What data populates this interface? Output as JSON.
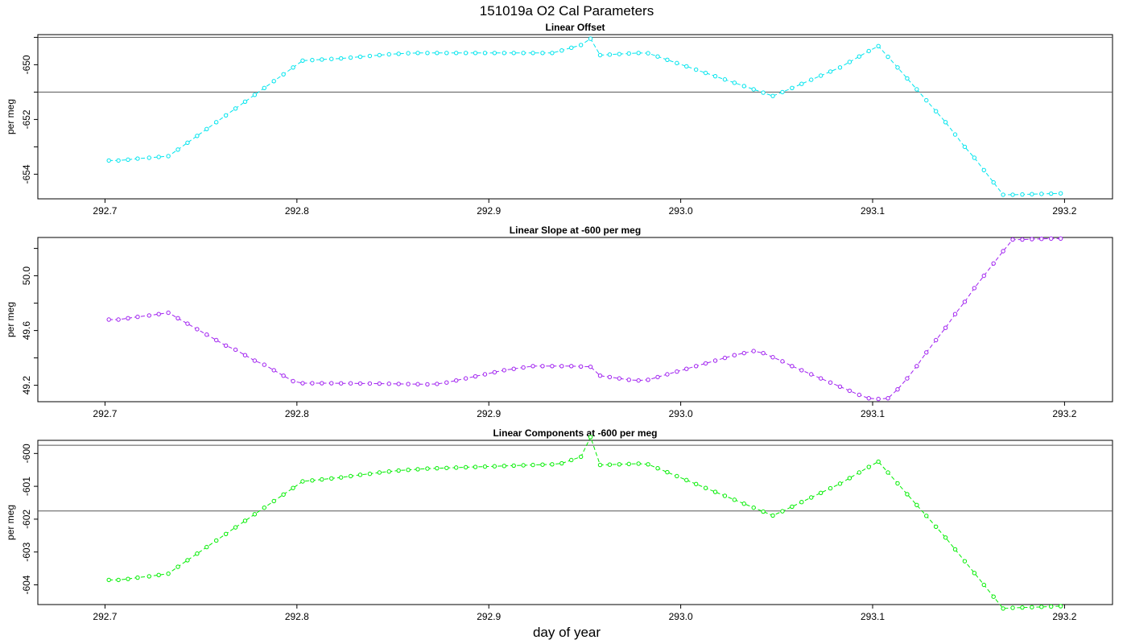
{
  "figure": {
    "title": "151019a   O2 Cal Parameters",
    "xlabel": "day of year"
  },
  "chart_data": [
    {
      "type": "line",
      "title": "Linear Offset",
      "ylabel": "per meg",
      "color": "#00e5ee",
      "xlim": [
        292.665,
        293.225
      ],
      "ylim": [
        -654.9,
        -648.9
      ],
      "xticks": [
        "292.7",
        "292.8",
        "292.9",
        "293.0",
        "293.1",
        "293.2"
      ],
      "yticks": [
        "-650",
        "-652",
        "-654"
      ],
      "yticks_minor": [
        -649,
        -651,
        -653
      ],
      "hlines": [
        -649.0,
        -651.0
      ],
      "x": [
        292.702,
        292.707,
        292.712,
        292.717,
        292.723,
        292.728,
        292.733,
        292.738,
        292.743,
        292.748,
        292.753,
        292.758,
        292.763,
        292.768,
        292.773,
        292.778,
        292.783,
        292.788,
        292.793,
        292.798,
        292.803,
        292.808,
        292.813,
        292.818,
        292.823,
        292.828,
        292.833,
        292.838,
        292.843,
        292.848,
        292.853,
        292.858,
        292.863,
        292.868,
        292.873,
        292.878,
        292.883,
        292.888,
        292.893,
        292.898,
        292.903,
        292.908,
        292.913,
        292.918,
        292.923,
        292.928,
        292.933,
        292.938,
        292.943,
        292.948,
        292.953,
        292.958,
        292.963,
        292.968,
        292.973,
        292.978,
        292.983,
        292.988,
        292.993,
        292.998,
        293.003,
        293.008,
        293.013,
        293.018,
        293.023,
        293.028,
        293.033,
        293.038,
        293.043,
        293.048,
        293.053,
        293.058,
        293.063,
        293.068,
        293.073,
        293.078,
        293.083,
        293.088,
        293.093,
        293.098,
        293.103,
        293.108,
        293.113,
        293.118,
        293.123,
        293.128,
        293.133,
        293.138,
        293.143,
        293.148,
        293.153,
        293.158,
        293.163,
        293.168,
        293.173,
        293.178,
        293.183,
        293.188,
        293.193,
        293.198
      ],
      "values": [
        -653.5,
        -653.5,
        -653.47,
        -653.43,
        -653.4,
        -653.37,
        -653.34,
        -653.1,
        -652.85,
        -652.6,
        -652.35,
        -652.1,
        -651.85,
        -651.6,
        -651.35,
        -651.1,
        -650.85,
        -650.6,
        -650.35,
        -650.1,
        -649.85,
        -649.83,
        -649.81,
        -649.79,
        -649.77,
        -649.74,
        -649.71,
        -649.68,
        -649.65,
        -649.62,
        -649.6,
        -649.58,
        -649.57,
        -649.57,
        -649.57,
        -649.57,
        -649.57,
        -649.57,
        -649.57,
        -649.57,
        -649.57,
        -649.57,
        -649.57,
        -649.57,
        -649.57,
        -649.57,
        -649.57,
        -649.48,
        -649.38,
        -649.28,
        -649.05,
        -649.65,
        -649.63,
        -649.61,
        -649.59,
        -649.57,
        -649.58,
        -649.7,
        -649.82,
        -649.94,
        -650.06,
        -650.18,
        -650.3,
        -650.42,
        -650.54,
        -650.66,
        -650.78,
        -650.9,
        -651.02,
        -651.14,
        -651.0,
        -650.85,
        -650.7,
        -650.55,
        -650.4,
        -650.25,
        -650.1,
        -649.9,
        -649.7,
        -649.5,
        -649.32,
        -649.71,
        -650.1,
        -650.5,
        -650.9,
        -651.3,
        -651.7,
        -652.1,
        -652.55,
        -653.0,
        -653.4,
        -653.85,
        -654.3,
        -654.75,
        -654.75,
        -654.74,
        -654.73,
        -654.72,
        -654.71,
        -654.7
      ]
    },
    {
      "type": "line",
      "title": "Linear Slope at -600 per meg",
      "ylabel": "per meg",
      "color": "#a020f0",
      "xlim": [
        292.665,
        293.225
      ],
      "ylim": [
        49.08,
        50.28
      ],
      "xticks": [
        "292.7",
        "292.8",
        "292.9",
        "293.0",
        "293.1",
        "293.2"
      ],
      "yticks": [
        "50.0",
        "49.6",
        "49.2"
      ],
      "yticks_minor": [
        50.2,
        49.8,
        49.4
      ],
      "hlines": [],
      "x": [
        292.702,
        292.707,
        292.712,
        292.717,
        292.723,
        292.728,
        292.733,
        292.738,
        292.743,
        292.748,
        292.753,
        292.758,
        292.763,
        292.768,
        292.773,
        292.778,
        292.783,
        292.788,
        292.793,
        292.798,
        292.803,
        292.808,
        292.813,
        292.818,
        292.823,
        292.828,
        292.833,
        292.838,
        292.843,
        292.848,
        292.853,
        292.858,
        292.863,
        292.868,
        292.873,
        292.878,
        292.883,
        292.888,
        292.893,
        292.898,
        292.903,
        292.908,
        292.913,
        292.918,
        292.923,
        292.928,
        292.933,
        292.938,
        292.943,
        292.948,
        292.953,
        292.958,
        292.963,
        292.968,
        292.973,
        292.978,
        292.983,
        292.988,
        292.993,
        292.998,
        293.003,
        293.008,
        293.013,
        293.018,
        293.023,
        293.028,
        293.033,
        293.038,
        293.043,
        293.048,
        293.053,
        293.058,
        293.063,
        293.068,
        293.073,
        293.078,
        293.083,
        293.088,
        293.093,
        293.098,
        293.103,
        293.108,
        293.113,
        293.118,
        293.123,
        293.128,
        293.133,
        293.138,
        293.143,
        293.148,
        293.153,
        293.158,
        293.163,
        293.168,
        293.173,
        293.178,
        293.183,
        293.188,
        293.193,
        293.198
      ],
      "values": [
        49.68,
        49.68,
        49.69,
        49.7,
        49.71,
        49.72,
        49.73,
        49.69,
        49.65,
        49.61,
        49.57,
        49.53,
        49.49,
        49.46,
        49.42,
        49.38,
        49.35,
        49.31,
        49.27,
        49.23,
        49.215,
        49.215,
        49.215,
        49.215,
        49.214,
        49.214,
        49.213,
        49.213,
        49.212,
        49.211,
        49.21,
        49.209,
        49.208,
        49.207,
        49.21,
        49.22,
        49.235,
        49.25,
        49.265,
        49.28,
        49.295,
        49.31,
        49.32,
        49.33,
        49.34,
        49.34,
        49.34,
        49.34,
        49.34,
        49.337,
        49.335,
        49.27,
        49.26,
        49.25,
        49.24,
        49.235,
        49.24,
        49.26,
        49.28,
        49.3,
        49.32,
        49.34,
        49.36,
        49.38,
        49.4,
        49.42,
        49.435,
        49.45,
        49.435,
        49.405,
        49.375,
        49.34,
        49.31,
        49.28,
        49.25,
        49.22,
        49.19,
        49.16,
        49.13,
        49.105,
        49.1,
        49.105,
        49.17,
        49.25,
        49.34,
        49.44,
        49.53,
        49.62,
        49.72,
        49.81,
        49.91,
        50.0,
        50.09,
        50.18,
        50.265,
        50.265,
        50.268,
        50.27,
        50.272,
        50.272
      ]
    },
    {
      "type": "line",
      "title": "Linear Components at -600 per meg",
      "ylabel": "per meg",
      "color": "#00ee00",
      "xlim": [
        292.665,
        293.225
      ],
      "ylim": [
        -604.6,
        -599.6
      ],
      "xticks": [
        "292.7",
        "292.8",
        "292.9",
        "293.0",
        "293.1",
        "293.2"
      ],
      "yticks": [
        "-600",
        "-601",
        "-602",
        "-603",
        "-604"
      ],
      "yticks_minor": [],
      "hlines": [
        -599.75,
        -601.75
      ],
      "x": [
        292.702,
        292.707,
        292.712,
        292.717,
        292.723,
        292.728,
        292.733,
        292.738,
        292.743,
        292.748,
        292.753,
        292.758,
        292.763,
        292.768,
        292.773,
        292.778,
        292.783,
        292.788,
        292.793,
        292.798,
        292.803,
        292.808,
        292.813,
        292.818,
        292.823,
        292.828,
        292.833,
        292.838,
        292.843,
        292.848,
        292.853,
        292.858,
        292.863,
        292.868,
        292.873,
        292.878,
        292.883,
        292.888,
        292.893,
        292.898,
        292.903,
        292.908,
        292.913,
        292.918,
        292.923,
        292.928,
        292.933,
        292.938,
        292.943,
        292.948,
        292.953,
        292.958,
        292.963,
        292.968,
        292.973,
        292.978,
        292.983,
        292.988,
        292.993,
        292.998,
        293.003,
        293.008,
        293.013,
        293.018,
        293.023,
        293.028,
        293.033,
        293.038,
        293.043,
        293.048,
        293.053,
        293.058,
        293.063,
        293.068,
        293.073,
        293.078,
        293.083,
        293.088,
        293.093,
        293.098,
        293.103,
        293.108,
        293.113,
        293.118,
        293.123,
        293.128,
        293.133,
        293.138,
        293.143,
        293.148,
        293.153,
        293.158,
        293.163,
        293.168,
        293.173,
        293.178,
        293.183,
        293.188,
        293.193,
        293.198
      ],
      "values": [
        -603.85,
        -603.85,
        -603.82,
        -603.78,
        -603.74,
        -603.7,
        -603.66,
        -603.45,
        -603.25,
        -603.05,
        -602.85,
        -602.65,
        -602.45,
        -602.25,
        -602.05,
        -601.85,
        -601.65,
        -601.45,
        -601.25,
        -601.05,
        -600.85,
        -600.82,
        -600.79,
        -600.76,
        -600.73,
        -600.69,
        -600.65,
        -600.62,
        -600.58,
        -600.55,
        -600.52,
        -600.5,
        -600.48,
        -600.46,
        -600.45,
        -600.44,
        -600.43,
        -600.42,
        -600.41,
        -600.4,
        -600.39,
        -600.38,
        -600.37,
        -600.36,
        -600.35,
        -600.34,
        -600.33,
        -600.3,
        -600.2,
        -600.1,
        -599.5,
        -600.35,
        -600.34,
        -600.33,
        -600.32,
        -600.31,
        -600.33,
        -600.45,
        -600.57,
        -600.69,
        -600.81,
        -600.93,
        -601.05,
        -601.17,
        -601.29,
        -601.41,
        -601.53,
        -601.65,
        -601.77,
        -601.89,
        -601.76,
        -601.62,
        -601.48,
        -601.34,
        -601.2,
        -601.06,
        -600.92,
        -600.75,
        -600.58,
        -600.41,
        -600.25,
        -600.58,
        -600.91,
        -601.24,
        -601.57,
        -601.9,
        -602.23,
        -602.56,
        -602.92,
        -603.28,
        -603.64,
        -604.0,
        -604.36,
        -604.72,
        -604.7,
        -604.69,
        -604.68,
        -604.67,
        -604.66,
        -604.65
      ]
    }
  ]
}
